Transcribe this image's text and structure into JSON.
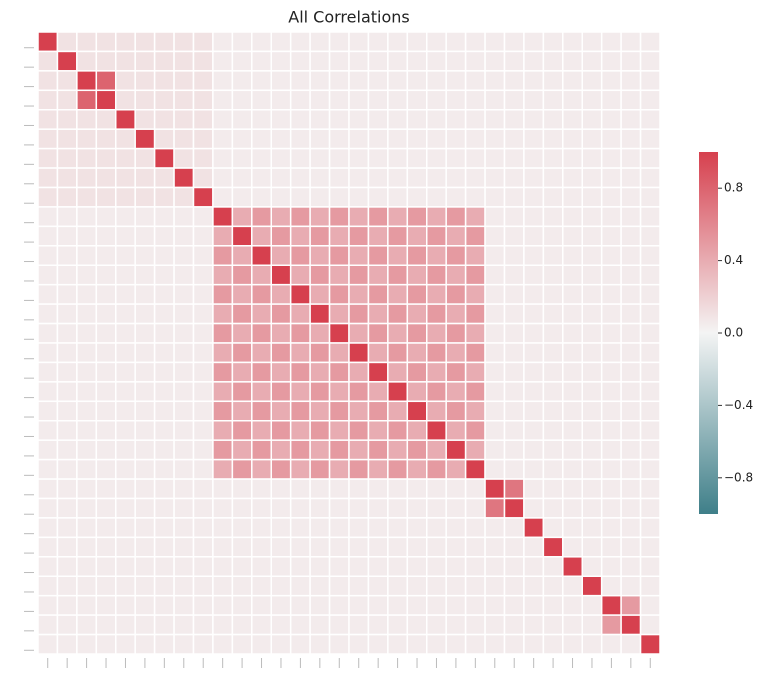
{
  "chart_data": {
    "type": "heatmap",
    "title": "All Correlations",
    "categories": [
      null,
      null,
      null,
      null,
      null,
      null,
      null,
      null,
      null,
      null,
      null,
      null,
      null,
      null,
      null,
      null,
      null,
      null,
      null,
      null,
      null,
      null,
      null,
      null,
      null,
      null,
      null,
      null,
      null,
      null,
      null,
      null
    ],
    "colormap": [
      "#3f7f89",
      "#f4f4f4",
      "#d6404e"
    ],
    "clim": [
      -1,
      1
    ],
    "cticks": [
      {
        "value": -0.8,
        "label": "−0.8"
      },
      {
        "value": -0.4,
        "label": "−0.4"
      },
      {
        "value": 0,
        "label": "0.0"
      },
      0.4,
      0.8
    ],
    "matrix": [
      [
        1,
        0.1,
        0.1,
        0.1,
        0.1,
        0.1,
        0.1,
        0.1,
        0.1,
        0.05,
        0.05,
        0.05,
        0.05,
        0.05,
        0.05,
        0.05,
        0.05,
        0.05,
        0.05,
        0.05,
        0.05,
        0.05,
        0.05,
        0.05,
        0.05,
        0.05,
        0.05,
        0.05,
        0.05,
        0.05,
        0.05,
        0.05
      ],
      [
        0.1,
        1,
        0.1,
        0.1,
        0.1,
        0.1,
        0.1,
        0.1,
        0.1,
        0.05,
        0.05,
        0.05,
        0.05,
        0.05,
        0.05,
        0.05,
        0.05,
        0.05,
        0.05,
        0.05,
        0.05,
        0.05,
        0.05,
        0.05,
        0.05,
        0.05,
        0.05,
        0.05,
        0.05,
        0.05,
        0.05,
        0.05
      ],
      [
        0.1,
        0.1,
        1,
        0.8,
        0.1,
        0.1,
        0.1,
        0.1,
        0.1,
        0.05,
        0.05,
        0.05,
        0.05,
        0.05,
        0.05,
        0.05,
        0.05,
        0.05,
        0.05,
        0.05,
        0.05,
        0.05,
        0.05,
        0.05,
        0.05,
        0.05,
        0.05,
        0.05,
        0.05,
        0.05,
        0.05,
        0.05
      ],
      [
        0.1,
        0.1,
        0.8,
        1,
        0.1,
        0.1,
        0.1,
        0.1,
        0.1,
        0.05,
        0.05,
        0.05,
        0.05,
        0.05,
        0.05,
        0.05,
        0.05,
        0.05,
        0.05,
        0.05,
        0.05,
        0.05,
        0.05,
        0.05,
        0.05,
        0.05,
        0.05,
        0.05,
        0.05,
        0.05,
        0.05,
        0.05
      ],
      [
        0.1,
        0.1,
        0.1,
        0.1,
        1,
        0.1,
        0.1,
        0.1,
        0.1,
        0.05,
        0.05,
        0.05,
        0.05,
        0.05,
        0.05,
        0.05,
        0.05,
        0.05,
        0.05,
        0.05,
        0.05,
        0.05,
        0.05,
        0.05,
        0.05,
        0.05,
        0.05,
        0.05,
        0.05,
        0.05,
        0.05,
        0.05
      ],
      [
        0.1,
        0.1,
        0.1,
        0.1,
        0.1,
        1,
        0.1,
        0.1,
        0.1,
        0.05,
        0.05,
        0.05,
        0.05,
        0.05,
        0.05,
        0.05,
        0.05,
        0.05,
        0.05,
        0.05,
        0.05,
        0.05,
        0.05,
        0.05,
        0.05,
        0.05,
        0.05,
        0.05,
        0.05,
        0.05,
        0.05,
        0.05
      ],
      [
        0.1,
        0.1,
        0.1,
        0.1,
        0.1,
        0.1,
        1,
        0.1,
        0.1,
        0.05,
        0.05,
        0.05,
        0.05,
        0.05,
        0.05,
        0.05,
        0.05,
        0.05,
        0.05,
        0.05,
        0.05,
        0.05,
        0.05,
        0.05,
        0.05,
        0.05,
        0.05,
        0.05,
        0.05,
        0.05,
        0.05,
        0.05
      ],
      [
        0.1,
        0.1,
        0.1,
        0.1,
        0.1,
        0.1,
        0.1,
        1,
        0.1,
        0.05,
        0.05,
        0.05,
        0.05,
        0.05,
        0.05,
        0.05,
        0.05,
        0.05,
        0.05,
        0.05,
        0.05,
        0.05,
        0.05,
        0.05,
        0.05,
        0.05,
        0.05,
        0.05,
        0.05,
        0.05,
        0.05,
        0.05
      ],
      [
        0.1,
        0.1,
        0.1,
        0.1,
        0.1,
        0.1,
        0.1,
        0.1,
        1,
        0.05,
        0.05,
        0.05,
        0.05,
        0.05,
        0.05,
        0.05,
        0.05,
        0.05,
        0.05,
        0.05,
        0.05,
        0.05,
        0.05,
        0.05,
        0.05,
        0.05,
        0.05,
        0.05,
        0.05,
        0.05,
        0.05,
        0.05
      ],
      [
        0.05,
        0.05,
        0.05,
        0.05,
        0.05,
        0.05,
        0.05,
        0.05,
        0.05,
        1,
        0.4,
        0.5,
        0.4,
        0.5,
        0.4,
        0.5,
        0.4,
        0.5,
        0.4,
        0.5,
        0.4,
        0.5,
        0.4,
        0.05,
        0.05,
        0.05,
        0.05,
        0.05,
        0.05,
        0.05,
        0.05,
        0.05
      ],
      [
        0.05,
        0.05,
        0.05,
        0.05,
        0.05,
        0.05,
        0.05,
        0.05,
        0.05,
        0.4,
        1,
        0.4,
        0.5,
        0.4,
        0.5,
        0.4,
        0.5,
        0.4,
        0.5,
        0.4,
        0.5,
        0.4,
        0.5,
        0.05,
        0.05,
        0.05,
        0.05,
        0.05,
        0.05,
        0.05,
        0.05,
        0.05
      ],
      [
        0.05,
        0.05,
        0.05,
        0.05,
        0.05,
        0.05,
        0.05,
        0.05,
        0.05,
        0.5,
        0.4,
        1,
        0.4,
        0.5,
        0.4,
        0.5,
        0.4,
        0.5,
        0.4,
        0.5,
        0.4,
        0.5,
        0.4,
        0.05,
        0.05,
        0.05,
        0.05,
        0.05,
        0.05,
        0.05,
        0.05,
        0.05
      ],
      [
        0.05,
        0.05,
        0.05,
        0.05,
        0.05,
        0.05,
        0.05,
        0.05,
        0.05,
        0.4,
        0.5,
        0.4,
        1,
        0.4,
        0.5,
        0.4,
        0.5,
        0.4,
        0.5,
        0.4,
        0.5,
        0.4,
        0.5,
        0.05,
        0.05,
        0.05,
        0.05,
        0.05,
        0.05,
        0.05,
        0.05,
        0.05
      ],
      [
        0.05,
        0.05,
        0.05,
        0.05,
        0.05,
        0.05,
        0.05,
        0.05,
        0.05,
        0.5,
        0.4,
        0.5,
        0.4,
        1,
        0.4,
        0.5,
        0.4,
        0.5,
        0.4,
        0.5,
        0.4,
        0.5,
        0.4,
        0.05,
        0.05,
        0.05,
        0.05,
        0.05,
        0.05,
        0.05,
        0.05,
        0.05
      ],
      [
        0.05,
        0.05,
        0.05,
        0.05,
        0.05,
        0.05,
        0.05,
        0.05,
        0.05,
        0.4,
        0.5,
        0.4,
        0.5,
        0.4,
        1,
        0.4,
        0.5,
        0.4,
        0.5,
        0.4,
        0.5,
        0.4,
        0.5,
        0.05,
        0.05,
        0.05,
        0.05,
        0.05,
        0.05,
        0.05,
        0.05,
        0.05
      ],
      [
        0.05,
        0.05,
        0.05,
        0.05,
        0.05,
        0.05,
        0.05,
        0.05,
        0.05,
        0.5,
        0.4,
        0.5,
        0.4,
        0.5,
        0.4,
        1,
        0.4,
        0.5,
        0.4,
        0.5,
        0.4,
        0.5,
        0.4,
        0.05,
        0.05,
        0.05,
        0.05,
        0.05,
        0.05,
        0.05,
        0.05,
        0.05
      ],
      [
        0.05,
        0.05,
        0.05,
        0.05,
        0.05,
        0.05,
        0.05,
        0.05,
        0.05,
        0.4,
        0.5,
        0.4,
        0.5,
        0.4,
        0.5,
        0.4,
        1,
        0.4,
        0.5,
        0.4,
        0.5,
        0.4,
        0.5,
        0.05,
        0.05,
        0.05,
        0.05,
        0.05,
        0.05,
        0.05,
        0.05,
        0.05
      ],
      [
        0.05,
        0.05,
        0.05,
        0.05,
        0.05,
        0.05,
        0.05,
        0.05,
        0.05,
        0.5,
        0.4,
        0.5,
        0.4,
        0.5,
        0.4,
        0.5,
        0.4,
        1,
        0.4,
        0.5,
        0.4,
        0.5,
        0.4,
        0.05,
        0.05,
        0.05,
        0.05,
        0.05,
        0.05,
        0.05,
        0.05,
        0.05
      ],
      [
        0.05,
        0.05,
        0.05,
        0.05,
        0.05,
        0.05,
        0.05,
        0.05,
        0.05,
        0.4,
        0.5,
        0.4,
        0.5,
        0.4,
        0.5,
        0.4,
        0.5,
        0.4,
        1,
        0.4,
        0.5,
        0.4,
        0.5,
        0.05,
        0.05,
        0.05,
        0.05,
        0.05,
        0.05,
        0.05,
        0.05,
        0.05
      ],
      [
        0.05,
        0.05,
        0.05,
        0.05,
        0.05,
        0.05,
        0.05,
        0.05,
        0.05,
        0.5,
        0.4,
        0.5,
        0.4,
        0.5,
        0.4,
        0.5,
        0.4,
        0.5,
        0.4,
        1,
        0.4,
        0.5,
        0.4,
        0.05,
        0.05,
        0.05,
        0.05,
        0.05,
        0.05,
        0.05,
        0.05,
        0.05
      ],
      [
        0.05,
        0.05,
        0.05,
        0.05,
        0.05,
        0.05,
        0.05,
        0.05,
        0.05,
        0.4,
        0.5,
        0.4,
        0.5,
        0.4,
        0.5,
        0.4,
        0.5,
        0.4,
        0.5,
        0.4,
        1,
        0.4,
        0.5,
        0.05,
        0.05,
        0.05,
        0.05,
        0.05,
        0.05,
        0.05,
        0.05,
        0.05
      ],
      [
        0.05,
        0.05,
        0.05,
        0.05,
        0.05,
        0.05,
        0.05,
        0.05,
        0.05,
        0.5,
        0.4,
        0.5,
        0.4,
        0.5,
        0.4,
        0.5,
        0.4,
        0.5,
        0.4,
        0.5,
        0.4,
        1,
        0.4,
        0.05,
        0.05,
        0.05,
        0.05,
        0.05,
        0.05,
        0.05,
        0.05,
        0.05
      ],
      [
        0.05,
        0.05,
        0.05,
        0.05,
        0.05,
        0.05,
        0.05,
        0.05,
        0.05,
        0.4,
        0.5,
        0.4,
        0.5,
        0.4,
        0.5,
        0.4,
        0.5,
        0.4,
        0.5,
        0.4,
        0.5,
        0.4,
        1,
        0.05,
        0.05,
        0.05,
        0.05,
        0.05,
        0.05,
        0.05,
        0.05,
        0.05
      ],
      [
        0.05,
        0.05,
        0.05,
        0.05,
        0.05,
        0.05,
        0.05,
        0.05,
        0.05,
        0.05,
        0.05,
        0.05,
        0.05,
        0.05,
        0.05,
        0.05,
        0.05,
        0.05,
        0.05,
        0.05,
        0.05,
        0.05,
        0.05,
        1,
        0.7,
        0.05,
        0.05,
        0.05,
        0.05,
        0.05,
        0.05,
        0.05
      ],
      [
        0.05,
        0.05,
        0.05,
        0.05,
        0.05,
        0.05,
        0.05,
        0.05,
        0.05,
        0.05,
        0.05,
        0.05,
        0.05,
        0.05,
        0.05,
        0.05,
        0.05,
        0.05,
        0.05,
        0.05,
        0.05,
        0.05,
        0.05,
        0.7,
        1,
        0.05,
        0.05,
        0.05,
        0.05,
        0.05,
        0.05,
        0.05
      ],
      [
        0.05,
        0.05,
        0.05,
        0.05,
        0.05,
        0.05,
        0.05,
        0.05,
        0.05,
        0.05,
        0.05,
        0.05,
        0.05,
        0.05,
        0.05,
        0.05,
        0.05,
        0.05,
        0.05,
        0.05,
        0.05,
        0.05,
        0.05,
        0.05,
        0.05,
        1,
        0.05,
        0.05,
        0.05,
        0.05,
        0.05,
        0.05
      ],
      [
        0.05,
        0.05,
        0.05,
        0.05,
        0.05,
        0.05,
        0.05,
        0.05,
        0.05,
        0.05,
        0.05,
        0.05,
        0.05,
        0.05,
        0.05,
        0.05,
        0.05,
        0.05,
        0.05,
        0.05,
        0.05,
        0.05,
        0.05,
        0.05,
        0.05,
        0.05,
        1,
        0.05,
        0.05,
        0.05,
        0.05,
        0.05
      ],
      [
        0.05,
        0.05,
        0.05,
        0.05,
        0.05,
        0.05,
        0.05,
        0.05,
        0.05,
        0.05,
        0.05,
        0.05,
        0.05,
        0.05,
        0.05,
        0.05,
        0.05,
        0.05,
        0.05,
        0.05,
        0.05,
        0.05,
        0.05,
        0.05,
        0.05,
        0.05,
        0.05,
        1,
        0.05,
        0.05,
        0.05,
        0.05
      ],
      [
        0.05,
        0.05,
        0.05,
        0.05,
        0.05,
        0.05,
        0.05,
        0.05,
        0.05,
        0.05,
        0.05,
        0.05,
        0.05,
        0.05,
        0.05,
        0.05,
        0.05,
        0.05,
        0.05,
        0.05,
        0.05,
        0.05,
        0.05,
        0.05,
        0.05,
        0.05,
        0.05,
        0.05,
        1,
        0.05,
        0.05,
        0.05
      ],
      [
        0.05,
        0.05,
        0.05,
        0.05,
        0.05,
        0.05,
        0.05,
        0.05,
        0.05,
        0.05,
        0.05,
        0.05,
        0.05,
        0.05,
        0.05,
        0.05,
        0.05,
        0.05,
        0.05,
        0.05,
        0.05,
        0.05,
        0.05,
        0.05,
        0.05,
        0.05,
        0.05,
        0.05,
        0.05,
        1,
        0.5,
        0.05
      ],
      [
        0.05,
        0.05,
        0.05,
        0.05,
        0.05,
        0.05,
        0.05,
        0.05,
        0.05,
        0.05,
        0.05,
        0.05,
        0.05,
        0.05,
        0.05,
        0.05,
        0.05,
        0.05,
        0.05,
        0.05,
        0.05,
        0.05,
        0.05,
        0.05,
        0.05,
        0.05,
        0.05,
        0.05,
        0.05,
        0.5,
        1,
        0.05
      ],
      [
        0.05,
        0.05,
        0.05,
        0.05,
        0.05,
        0.05,
        0.05,
        0.05,
        0.05,
        0.05,
        0.05,
        0.05,
        0.05,
        0.05,
        0.05,
        0.05,
        0.05,
        0.05,
        0.05,
        0.05,
        0.05,
        0.05,
        0.05,
        0.05,
        0.05,
        0.05,
        0.05,
        0.05,
        0.05,
        0.05,
        0.05,
        1
      ]
    ]
  }
}
